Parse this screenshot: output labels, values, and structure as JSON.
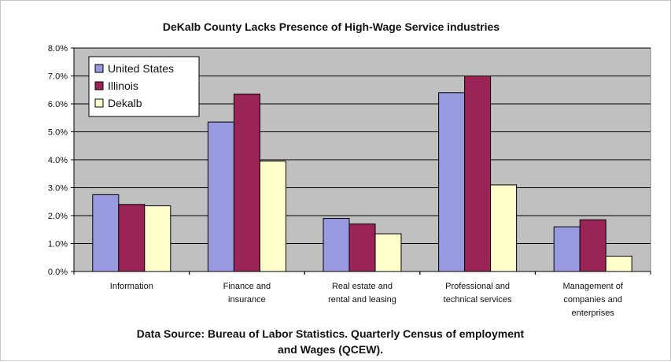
{
  "chart_data": {
    "type": "bar",
    "title": "DeKalb County Lacks Presence of High-Wage Service industries",
    "categories": [
      [
        "Information"
      ],
      [
        "Finance and",
        "insurance"
      ],
      [
        "Real estate and",
        "rental and leasing"
      ],
      [
        "Professional and",
        "technical services"
      ],
      [
        "Management of",
        "companies and",
        "enterprises"
      ]
    ],
    "series": [
      {
        "name": "United States",
        "color": "#9999e0",
        "values": [
          2.75,
          5.35,
          1.9,
          6.4,
          1.6
        ]
      },
      {
        "name": "Illinois",
        "color": "#9b2456",
        "values": [
          2.4,
          6.35,
          1.7,
          7.0,
          1.85
        ]
      },
      {
        "name": "Dekalb",
        "color": "#ffffcc",
        "values": [
          2.35,
          3.95,
          1.35,
          3.1,
          0.55
        ]
      }
    ],
    "ylim": [
      0,
      8
    ],
    "yticks": [
      "0.0%",
      "1.0%",
      "2.0%",
      "3.0%",
      "4.0%",
      "5.0%",
      "6.0%",
      "7.0%",
      "8.0%"
    ],
    "grid": true,
    "legend_position": "top-left",
    "plot_background": "#c0c0c0",
    "source_lines": [
      "Data Source: Bureau of Labor Statistics. Quarterly Census of employment",
      "and Wages (QCEW)."
    ]
  }
}
